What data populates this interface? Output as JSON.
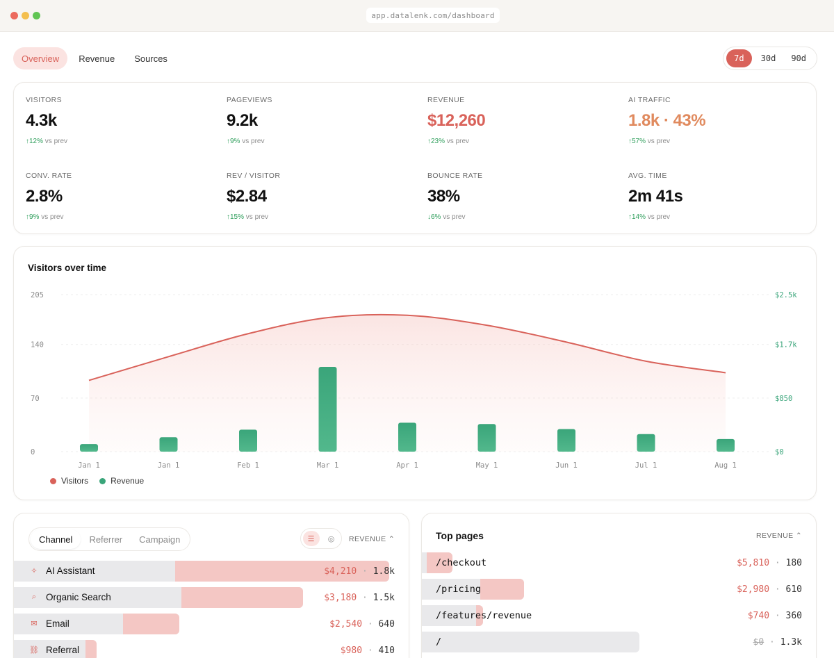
{
  "browser": {
    "url": "app.datalenk.com/dashboard"
  },
  "nav": {
    "tabs": [
      {
        "label": "Overview",
        "active": true
      },
      {
        "label": "Revenue",
        "active": false
      },
      {
        "label": "Sources",
        "active": false
      }
    ],
    "ranges": [
      {
        "label": "7d",
        "active": true
      },
      {
        "label": "30d",
        "active": false
      },
      {
        "label": "90d",
        "active": false
      }
    ]
  },
  "kpis": [
    {
      "label": "VISITORS",
      "value": "4.3k",
      "arrow": "↑",
      "delta": "12%",
      "suffix": "vs prev"
    },
    {
      "label": "PAGEVIEWS",
      "value": "9.2k",
      "arrow": "↑",
      "delta": "9%",
      "suffix": "vs prev"
    },
    {
      "label": "REVENUE",
      "value": "$12,260",
      "arrow": "↑",
      "delta": "23%",
      "suffix": "vs prev"
    },
    {
      "label": "AI TRAFFIC",
      "value": "1.8k · 43%",
      "arrow": "↑",
      "delta": "57%",
      "suffix": "vs prev"
    },
    {
      "label": "CONV. RATE",
      "value": "2.8%",
      "arrow": "↑",
      "delta": "9%",
      "suffix": "vs prev"
    },
    {
      "label": "REV / VISITOR",
      "value": "$2.84",
      "arrow": "↑",
      "delta": "15%",
      "suffix": "vs prev"
    },
    {
      "label": "BOUNCE RATE",
      "value": "38%",
      "arrow": "↓",
      "delta": "6%",
      "suffix": "vs prev"
    },
    {
      "label": "AVG. TIME",
      "value": "2m 41s",
      "arrow": "↑",
      "delta": "14%",
      "suffix": "vs prev"
    }
  ],
  "colors": {
    "accent": "#d9625a",
    "revenue_bar": "#3aa57a",
    "ai": "#e08a5e",
    "positive": "#2e9e5b"
  },
  "chart": {
    "title": "Visitors over time"
  },
  "chart_data": {
    "type": "line",
    "title": "Visitors over time",
    "categories": [
      "Jan 1",
      "Jan 1",
      "Feb 1",
      "Mar 1",
      "Apr 1",
      "May 1",
      "Jun 1",
      "Jul 1",
      "Aug 1"
    ],
    "left_ticks": [
      "0",
      "70",
      "140",
      "205"
    ],
    "right_ticks": [
      "$0",
      "$850",
      "$1.7k",
      "$2.5k"
    ],
    "ylim_left": [
      0,
      205
    ],
    "ylim_right": [
      0,
      2500
    ],
    "series": [
      {
        "name": "Visitors",
        "type": "area-line",
        "color": "#d9625a",
        "values": [
          93,
          124,
          154,
          175,
          178,
          165,
          143,
          118,
          103
        ]
      },
      {
        "name": "Revenue",
        "type": "bar",
        "color": "#3aa57a",
        "values": [
          120,
          230,
          350,
          1350,
          460,
          440,
          360,
          280,
          200
        ]
      }
    ],
    "grid": "horizontal-dashed",
    "legend": "bottom-left"
  },
  "channels": {
    "tabs": [
      {
        "label": "Channel",
        "active": true
      },
      {
        "label": "Referrer",
        "active": false
      },
      {
        "label": "Campaign",
        "active": false
      }
    ],
    "view_icons": [
      "list-icon",
      "pie-icon"
    ],
    "sort_label": "REVENUE ⌃",
    "rows": [
      {
        "icon": "sparkle-icon",
        "glyph": "✧",
        "label": "AI Assistant",
        "revenue": "$4,210",
        "visitors": "1.8k",
        "share": 1.0,
        "rev_share": 0.42
      },
      {
        "icon": "search-icon",
        "glyph": "⌕",
        "label": "Organic Search",
        "revenue": "$3,180",
        "visitors": "1.5k",
        "share": 0.77,
        "rev_share": 0.31
      },
      {
        "icon": "mail-icon",
        "glyph": "✉",
        "label": "Email",
        "revenue": "$2,540",
        "visitors": "640",
        "share": 0.44,
        "rev_share": 0.25
      },
      {
        "icon": "link-icon",
        "glyph": "⛓",
        "label": "Referral",
        "revenue": "$980",
        "visitors": "410",
        "share": 0.22,
        "rev_share": 0.1
      }
    ]
  },
  "top_pages": {
    "title": "Top pages",
    "sort_label": "REVENUE ⌃",
    "rows": [
      {
        "label": "/checkout",
        "revenue": "$5,810",
        "visitors": "180",
        "share": 0.14,
        "rev_share": 0.84,
        "struck": false
      },
      {
        "label": "/pricing",
        "revenue": "$2,980",
        "visitors": "610",
        "share": 0.47,
        "rev_share": 0.43,
        "struck": false
      },
      {
        "label": "/features/revenue",
        "revenue": "$740",
        "visitors": "360",
        "share": 0.28,
        "rev_share": 0.11,
        "struck": false
      },
      {
        "label": "/",
        "revenue": "$0",
        "visitors": "1.3k",
        "share": 1.0,
        "rev_share": 0.0,
        "struck": true
      }
    ]
  }
}
